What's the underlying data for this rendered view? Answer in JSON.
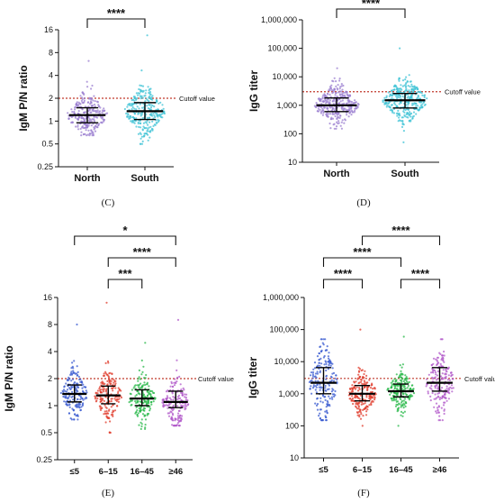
{
  "chart_data": [
    {
      "panel": "(C)",
      "type": "scatter",
      "scale": "log2",
      "ylabel": "IgM P/N ratio",
      "yticks": [
        "0.25",
        "0.5",
        "1",
        "2",
        "4",
        "8",
        "16"
      ],
      "ylim": [
        0.25,
        16
      ],
      "categories": [
        "North",
        "South"
      ],
      "colors": [
        "#9b7fd0",
        "#3fc3d6"
      ],
      "cutoff": {
        "label": "Cutoff value",
        "value": 2
      },
      "groups": [
        {
          "name": "North",
          "median": 1.2,
          "q1": 0.95,
          "q3": 1.5,
          "min": 0.65,
          "max": 6.2
        },
        {
          "name": "South",
          "median": 1.35,
          "q1": 1.05,
          "q3": 1.75,
          "min": 0.5,
          "max": 13.5
        }
      ],
      "brackets": [
        {
          "from": 0,
          "to": 1,
          "label": "****"
        }
      ]
    },
    {
      "panel": "(D)",
      "type": "scatter",
      "scale": "log10",
      "ylabel": "IgG titer",
      "yticks": [
        "10",
        "100",
        "1,000",
        "10,000",
        "100,000",
        "1,000,000"
      ],
      "ylim": [
        10,
        1000000
      ],
      "categories": [
        "North",
        "South"
      ],
      "colors": [
        "#9b7fd0",
        "#3fc3d6"
      ],
      "cutoff": {
        "label": "Cutoff value",
        "value": 3000
      },
      "groups": [
        {
          "name": "North",
          "median": 1000,
          "q1": 600,
          "q3": 1800,
          "min": 150,
          "max": 20000
        },
        {
          "name": "South",
          "median": 1500,
          "q1": 800,
          "q3": 2600,
          "min": 50,
          "max": 100000
        }
      ],
      "brackets": [
        {
          "from": 0,
          "to": 1,
          "label": "****"
        }
      ]
    },
    {
      "panel": "(E)",
      "type": "scatter",
      "scale": "log2",
      "ylabel": "IgM P/N ratio",
      "yticks": [
        "0.25",
        "0.5",
        "1",
        "2",
        "4",
        "8",
        "16"
      ],
      "ylim": [
        0.25,
        16
      ],
      "categories": [
        "≤5",
        "6–15",
        "16–45",
        "≥46"
      ],
      "colors": [
        "#3a5bd0",
        "#e03c2c",
        "#28b84a",
        "#b15ac9"
      ],
      "cutoff": {
        "label": "Cutoff value",
        "value": 2
      },
      "groups": [
        {
          "name": "≤5",
          "median": 1.35,
          "q1": 1.1,
          "q3": 1.7,
          "min": 0.7,
          "max": 8
        },
        {
          "name": "6–15",
          "median": 1.3,
          "q1": 1.05,
          "q3": 1.65,
          "min": 0.5,
          "max": 14
        },
        {
          "name": "16–45",
          "median": 1.2,
          "q1": 1.0,
          "q3": 1.5,
          "min": 0.55,
          "max": 5
        },
        {
          "name": "≥46",
          "median": 1.1,
          "q1": 0.95,
          "q3": 1.45,
          "min": 0.6,
          "max": 9
        }
      ],
      "brackets": [
        {
          "from": 1,
          "to": 2,
          "label": "***",
          "level": 0
        },
        {
          "from": 1,
          "to": 3,
          "label": "****",
          "level": 1
        },
        {
          "from": 0,
          "to": 3,
          "label": "*",
          "level": 2
        }
      ]
    },
    {
      "panel": "(F)",
      "type": "scatter",
      "scale": "log10",
      "ylabel": "IgG titer",
      "yticks": [
        "10",
        "100",
        "1,000",
        "10,000",
        "100,000",
        "1,000,000"
      ],
      "ylim": [
        10,
        1000000
      ],
      "categories": [
        "≤5",
        "6–15",
        "16–45",
        "≥46"
      ],
      "colors": [
        "#3a5bd0",
        "#e03c2c",
        "#28b84a",
        "#b15ac9"
      ],
      "cutoff": {
        "label": "Cutoff value",
        "value": 3000
      },
      "groups": [
        {
          "name": "≤5",
          "median": 2200,
          "q1": 1000,
          "q3": 6500,
          "min": 150,
          "max": 50000
        },
        {
          "name": "6–15",
          "median": 1000,
          "q1": 600,
          "q3": 1800,
          "min": 100,
          "max": 100000
        },
        {
          "name": "16–45",
          "median": 1200,
          "q1": 800,
          "q3": 2000,
          "min": 100,
          "max": 60000
        },
        {
          "name": "≥46",
          "median": 2200,
          "q1": 1200,
          "q3": 6500,
          "min": 150,
          "max": 50000
        }
      ],
      "brackets": [
        {
          "from": 0,
          "to": 1,
          "label": "****",
          "level": 0
        },
        {
          "from": 2,
          "to": 3,
          "label": "****",
          "level": 0
        },
        {
          "from": 0,
          "to": 2,
          "label": "****",
          "level": 1
        },
        {
          "from": 1,
          "to": 3,
          "label": "****",
          "level": 2
        }
      ]
    }
  ]
}
